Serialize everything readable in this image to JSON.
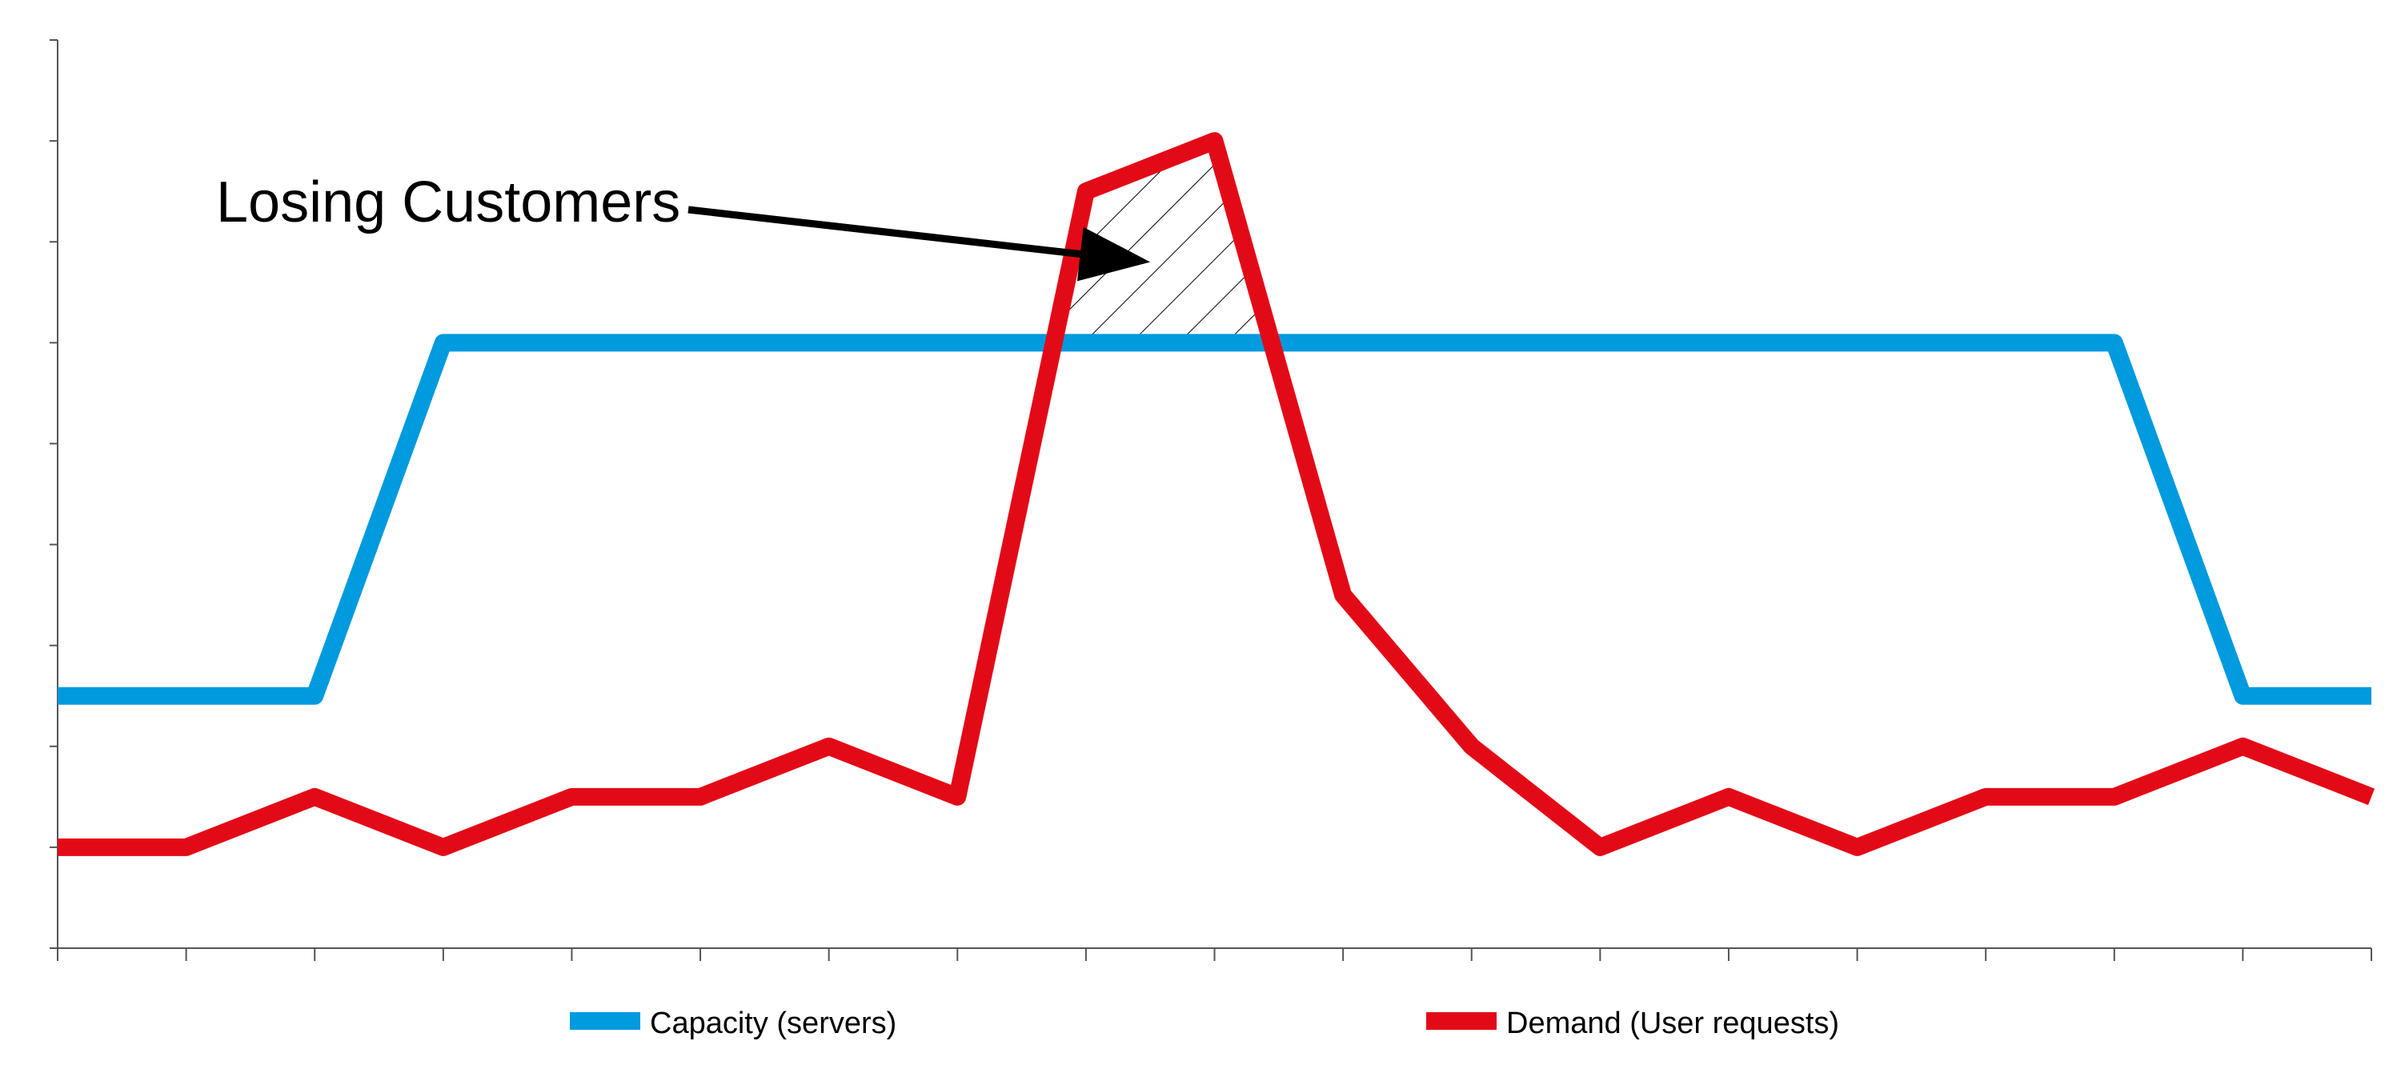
{
  "chart_data": {
    "type": "line",
    "x": [
      0,
      1,
      2,
      3,
      4,
      5,
      6,
      7,
      8,
      9,
      10,
      11,
      12,
      13,
      14,
      15,
      16,
      17,
      18
    ],
    "ylim": [
      0,
      9
    ],
    "xlim": [
      0,
      18
    ],
    "grid": false,
    "legend_position": "bottom",
    "series": [
      {
        "name": "Capacity (servers)",
        "color": "#009ADE",
        "values": [
          2.5,
          2.5,
          2.5,
          6,
          6,
          6,
          6,
          6,
          6,
          6,
          6,
          6,
          6,
          6,
          6,
          6,
          6,
          2.5,
          2.5
        ]
      },
      {
        "name": "Demand (User requests)",
        "color": "#E30A17",
        "values": [
          1,
          1,
          1.5,
          1,
          1.5,
          1.5,
          2,
          1.5,
          7.5,
          8,
          3.5,
          2,
          1,
          1.5,
          1,
          1.5,
          1.5,
          2,
          1.5
        ]
      }
    ],
    "annotations": [
      {
        "text": "Losing Customers",
        "target_x": 8.5,
        "target_y": 6.8
      }
    ]
  }
}
